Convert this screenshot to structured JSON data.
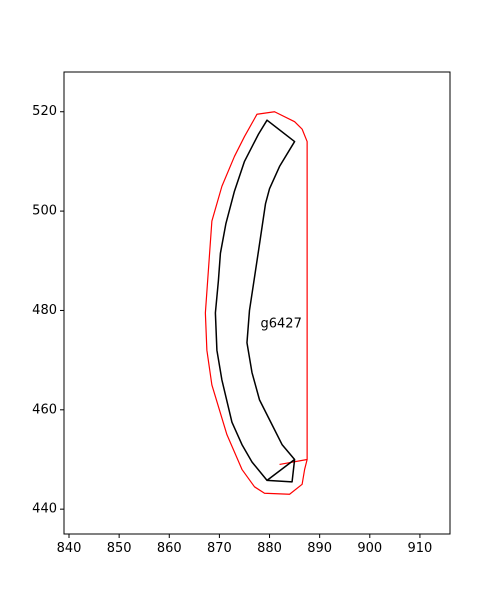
{
  "chart_data": {
    "type": "line",
    "title": "",
    "xlabel": "",
    "ylabel": "",
    "xlim": [
      839,
      916
    ],
    "ylim": [
      435,
      528
    ],
    "xticks": [
      840,
      850,
      860,
      870,
      880,
      890,
      900,
      910
    ],
    "yticks": [
      440,
      460,
      480,
      500,
      520
    ],
    "grid": false,
    "series": [
      {
        "color": "#ff0000",
        "closed": true,
        "points": [
          [
            877.5,
            519.5
          ],
          [
            881,
            520
          ],
          [
            885,
            518
          ],
          [
            886.5,
            516.5
          ],
          [
            887.5,
            514
          ],
          [
            887.5,
            450
          ],
          [
            887,
            448
          ],
          [
            886.5,
            445
          ],
          [
            884,
            443
          ],
          [
            879,
            443.2
          ],
          [
            877,
            444.5
          ],
          [
            874.5,
            448
          ],
          [
            871.5,
            455
          ],
          [
            868.5,
            465
          ],
          [
            867.5,
            472
          ],
          [
            867.2,
            479.5
          ],
          [
            868.5,
            498
          ],
          [
            870.5,
            505
          ],
          [
            873,
            511
          ],
          [
            875,
            515
          ]
        ]
      },
      {
        "color": "#ff0000",
        "closed": false,
        "points": [
          [
            882,
            449
          ],
          [
            887.5,
            450
          ]
        ]
      },
      {
        "color": "#000000",
        "closed": true,
        "points": [
          [
            879.5,
            518.3
          ],
          [
            885,
            514
          ],
          [
            882,
            509
          ],
          [
            880,
            504.5
          ],
          [
            879.2,
            501.5
          ],
          [
            877.8,
            492
          ],
          [
            876,
            480
          ],
          [
            875.5,
            473.5
          ],
          [
            876.5,
            467.5
          ],
          [
            878,
            462
          ],
          [
            880,
            458
          ],
          [
            882.5,
            453
          ],
          [
            885,
            450
          ],
          [
            884.5,
            445.5
          ],
          [
            879.5,
            445.8
          ],
          [
            876.5,
            449.5
          ],
          [
            874.5,
            453
          ],
          [
            872.5,
            457.5
          ],
          [
            870.5,
            466
          ],
          [
            869.5,
            472
          ],
          [
            869.2,
            479.5
          ],
          [
            869.8,
            486
          ],
          [
            870.2,
            491.5
          ],
          [
            871.3,
            497.5
          ],
          [
            873,
            504
          ],
          [
            875,
            510
          ],
          [
            877.8,
            515.5
          ]
        ]
      },
      {
        "color": "#000000",
        "closed": false,
        "points": [
          [
            879.5,
            445.8
          ],
          [
            885,
            450
          ]
        ]
      }
    ],
    "annotations": [
      {
        "text": "g6427",
        "x": 878.2,
        "y": 477.3
      }
    ]
  }
}
